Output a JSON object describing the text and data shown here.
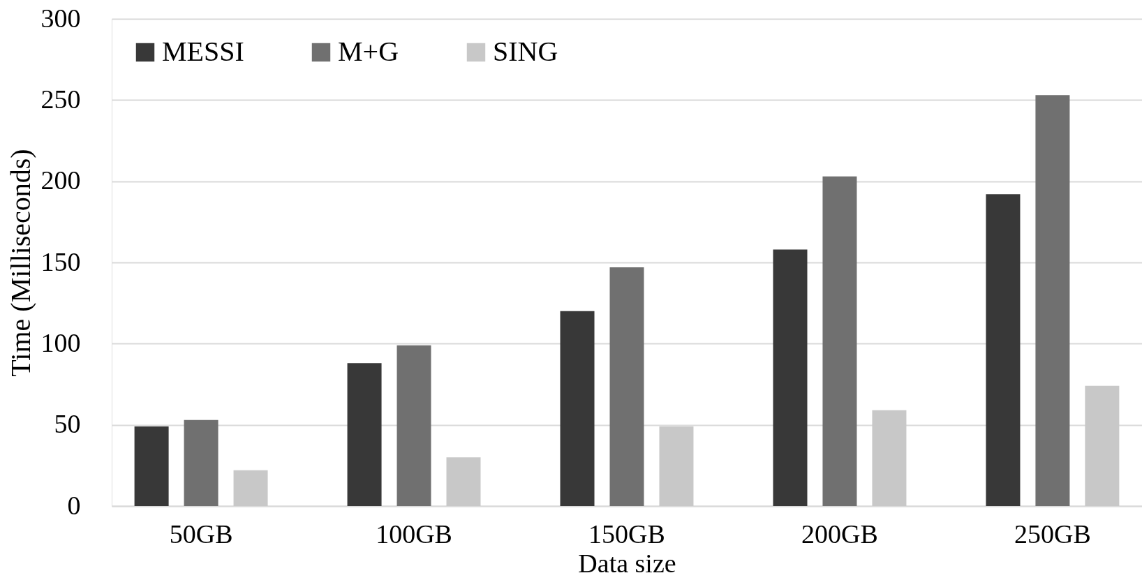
{
  "chart_data": {
    "type": "bar",
    "xlabel": "Data size",
    "ylabel": "Time (Milliseconds)",
    "categories": [
      "50GB",
      "100GB",
      "150GB",
      "200GB",
      "250GB"
    ],
    "series": [
      {
        "name": "MESSI",
        "color": "#383838",
        "values": [
          49,
          88,
          120,
          158,
          192
        ]
      },
      {
        "name": "M+G",
        "color": "#707070",
        "values": [
          53,
          99,
          147,
          203,
          253
        ]
      },
      {
        "name": "SING",
        "color": "#c8c8c8",
        "values": [
          22,
          30,
          49,
          59,
          74
        ]
      }
    ],
    "ylim": [
      0,
      300
    ],
    "yticks": [
      0,
      50,
      100,
      150,
      200,
      250,
      300
    ],
    "grid": "y",
    "legend": "top left"
  }
}
